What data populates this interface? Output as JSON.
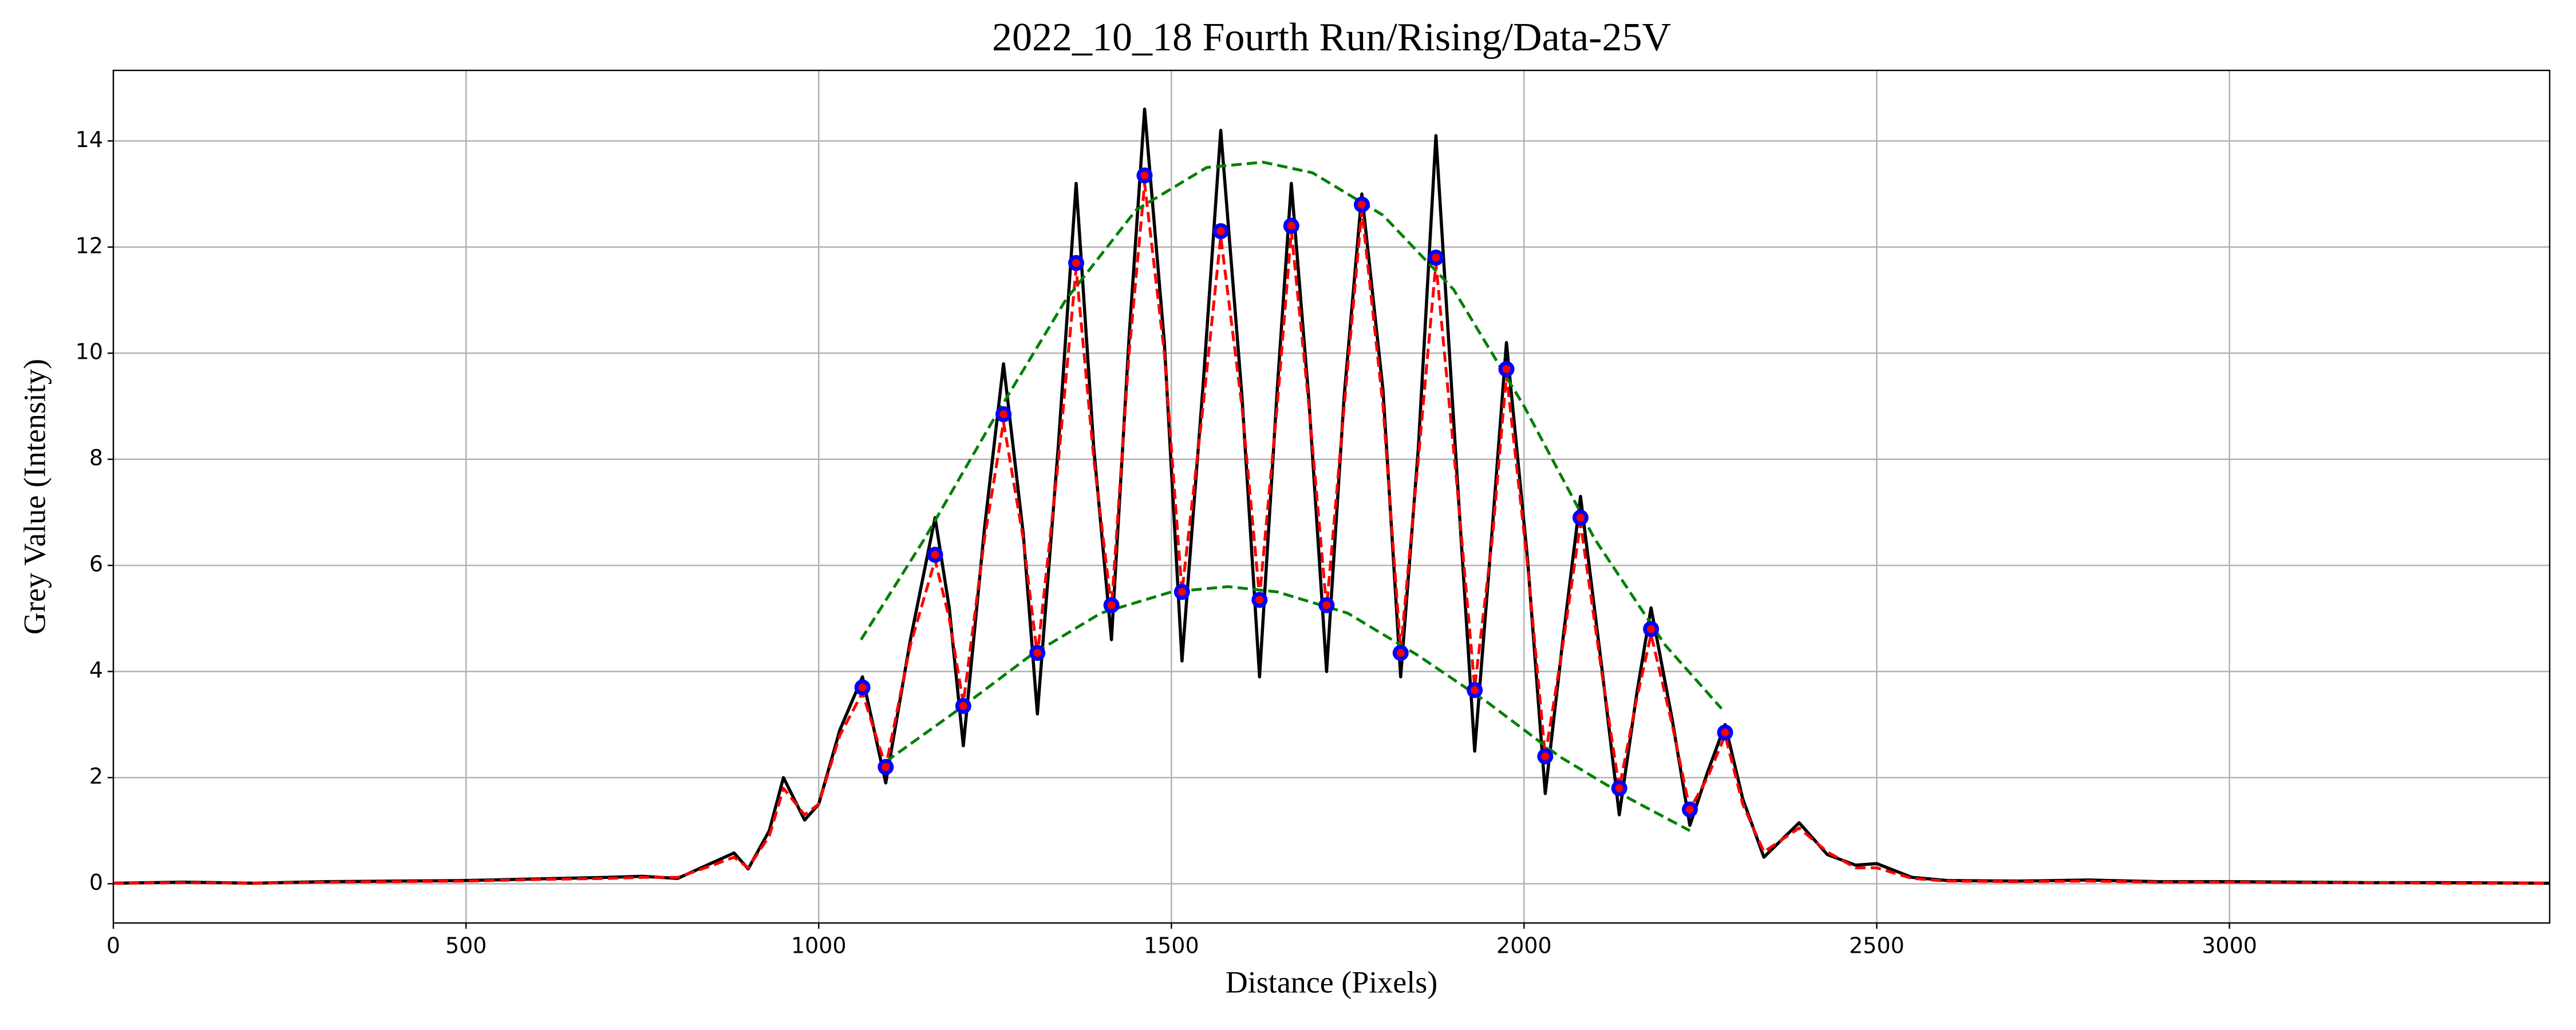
{
  "chart_data": {
    "type": "line",
    "title": "2022_10_18 Fourth Run/Rising/Data-25V",
    "x_label": "Distance (Pixels)",
    "y_label": "Grey Value (Intensity)",
    "xlim": [
      0,
      3454
    ],
    "ylim": [
      -0.74,
      15.33
    ],
    "xticks": [
      0,
      500,
      1000,
      1500,
      2000,
      2500,
      3000
    ],
    "yticks": [
      0,
      2,
      4,
      6,
      8,
      10,
      12,
      14
    ],
    "grid": true,
    "series": [
      {
        "color": "#000000",
        "style": "solid",
        "x": [
          0,
          100,
          200,
          300,
          400,
          500,
          600,
          700,
          750,
          800,
          850,
          880,
          900,
          930,
          950,
          980,
          1000,
          1030,
          1062,
          1095,
          1130,
          1165,
          1185,
          1205,
          1235,
          1262,
          1290,
          1310,
          1340,
          1365,
          1390,
          1415,
          1440,
          1462,
          1490,
          1515,
          1545,
          1570,
          1600,
          1625,
          1650,
          1670,
          1695,
          1720,
          1745,
          1770,
          1800,
          1825,
          1850,
          1875,
          1905,
          1930,
          1955,
          1975,
          2005,
          2030,
          2055,
          2080,
          2110,
          2135,
          2160,
          2180,
          2210,
          2235,
          2260,
          2285,
          2310,
          2340,
          2390,
          2430,
          2470,
          2500,
          2550,
          2600,
          2700,
          2800,
          2900,
          3000,
          3100,
          3200,
          3300,
          3454
        ],
        "values": [
          0.01,
          0.03,
          0.01,
          0.04,
          0.05,
          0.06,
          0.09,
          0.12,
          0.14,
          0.1,
          0.4,
          0.58,
          0.28,
          1.0,
          2.0,
          1.2,
          1.5,
          2.9,
          3.9,
          1.9,
          4.6,
          6.9,
          5.2,
          2.6,
          6.7,
          9.8,
          6.6,
          3.2,
          8.3,
          13.2,
          8.2,
          4.6,
          10.3,
          14.6,
          10.2,
          4.2,
          9.4,
          14.2,
          9.2,
          3.9,
          9.3,
          13.2,
          9.1,
          4.0,
          9.2,
          13.0,
          9.3,
          3.9,
          8.2,
          14.1,
          7.7,
          2.5,
          6.7,
          10.2,
          6.1,
          1.7,
          4.6,
          7.3,
          4.1,
          1.3,
          3.6,
          5.2,
          3.1,
          1.1,
          2.1,
          3.0,
          1.6,
          0.5,
          1.15,
          0.55,
          0.35,
          0.38,
          0.12,
          0.06,
          0.05,
          0.07,
          0.04,
          0.04,
          0.03,
          0.02,
          0.02,
          0.01
        ]
      },
      {
        "color": "#ff0000",
        "style": "dashed",
        "x": [
          0,
          100,
          200,
          300,
          400,
          500,
          600,
          700,
          750,
          800,
          850,
          880,
          900,
          930,
          950,
          980,
          1000,
          1030,
          1062,
          1095,
          1130,
          1165,
          1185,
          1205,
          1235,
          1262,
          1290,
          1310,
          1340,
          1365,
          1390,
          1415,
          1440,
          1462,
          1490,
          1515,
          1545,
          1570,
          1600,
          1625,
          1650,
          1670,
          1695,
          1720,
          1745,
          1770,
          1800,
          1825,
          1850,
          1875,
          1905,
          1930,
          1955,
          1975,
          2005,
          2030,
          2055,
          2080,
          2110,
          2135,
          2160,
          2180,
          2210,
          2235,
          2260,
          2285,
          2310,
          2340,
          2390,
          2430,
          2470,
          2500,
          2550,
          2600,
          2700,
          2800,
          2900,
          3000,
          3100,
          3200,
          3300,
          3454
        ],
        "values": [
          0.01,
          0.02,
          0.01,
          0.03,
          0.04,
          0.05,
          0.08,
          0.1,
          0.12,
          0.12,
          0.35,
          0.5,
          0.3,
          0.9,
          1.8,
          1.3,
          1.5,
          2.8,
          3.6,
          2.2,
          4.5,
          6.1,
          5,
          3.4,
          6.5,
          8.7,
          6.5,
          4.3,
          8,
          11.6,
          8,
          5.2,
          10,
          13.2,
          10,
          5.5,
          9,
          12.2,
          9,
          5.4,
          9,
          12.3,
          9,
          5.2,
          9,
          12.7,
          9,
          4.4,
          8,
          11.7,
          7.5,
          3.7,
          6.5,
          9.6,
          6,
          2.4,
          4.5,
          6.8,
          4,
          1.8,
          3.5,
          4.7,
          3,
          1.4,
          2,
          2.8,
          1.5,
          0.6,
          1.05,
          0.6,
          0.3,
          0.3,
          0.1,
          0.05,
          0.04,
          0.05,
          0.03,
          0.03,
          0.02,
          0.02,
          0.01,
          0.01
        ]
      },
      {
        "color": "#008000",
        "style": "dashed",
        "x": [
          1060,
          1150,
          1250,
          1350,
          1450,
          1550,
          1630,
          1700,
          1800,
          1900,
          2000,
          2100,
          2200,
          2280
        ],
        "values": [
          4.6,
          6.5,
          8.8,
          11,
          12.7,
          13.5,
          13.6,
          13.4,
          12.6,
          11.2,
          9,
          6.5,
          4.5,
          3.3
        ]
      },
      {
        "color": "#008000",
        "style": "dashed",
        "x": [
          1095,
          1200,
          1300,
          1400,
          1500,
          1580,
          1650,
          1750,
          1850,
          1950,
          2050,
          2150,
          2235
        ],
        "values": [
          2.3,
          3.3,
          4.3,
          5.1,
          5.5,
          5.6,
          5.5,
          5.1,
          4.3,
          3.4,
          2.4,
          1.6,
          1.0
        ]
      },
      {
        "color": "#0000ff",
        "style": "markers",
        "x": [
          1062,
          1095,
          1165,
          1205,
          1262,
          1310,
          1365,
          1415,
          1462,
          1515,
          1570,
          1625,
          1670,
          1720,
          1770,
          1825,
          1875,
          1930,
          1975,
          2030,
          2080,
          2135,
          2180,
          2235,
          2285
        ],
        "values": [
          3.7,
          2.2,
          6.2,
          3.35,
          8.85,
          4.35,
          11.7,
          5.25,
          13.35,
          5.5,
          12.3,
          5.35,
          12.4,
          5.25,
          12.8,
          4.35,
          11.8,
          3.65,
          9.7,
          2.4,
          6.9,
          1.8,
          4.8,
          1.4,
          2.85
        ]
      }
    ]
  }
}
